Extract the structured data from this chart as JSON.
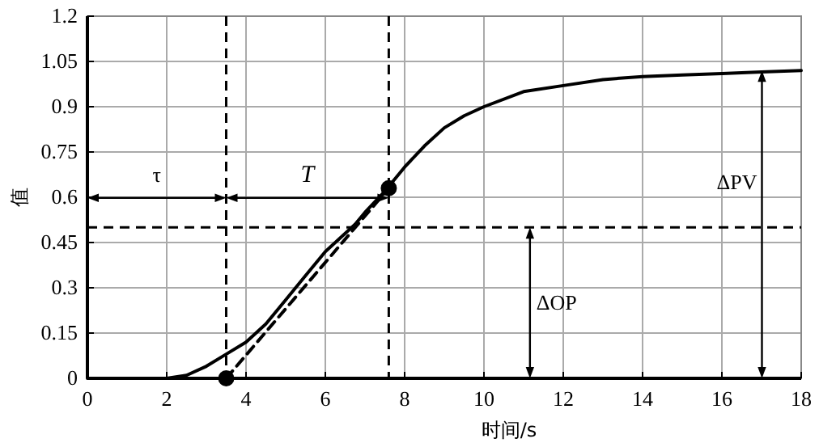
{
  "chart_data": {
    "type": "line",
    "xlabel": "时间/s",
    "ylabel": "值",
    "xlim": [
      0,
      18
    ],
    "ylim": [
      0,
      1.2
    ],
    "xticks": [
      0,
      2,
      4,
      6,
      8,
      10,
      12,
      14,
      16,
      18
    ],
    "yticks": [
      0,
      0.15,
      0.3,
      0.45,
      0.6,
      0.75,
      0.9,
      1.05,
      1.2
    ],
    "grid": true,
    "series": [
      {
        "color": "#000000",
        "line_style": "solid",
        "x": [
          0,
          2,
          2.5,
          3,
          3.5,
          4,
          4.5,
          5,
          5.5,
          6,
          6.5,
          6.75,
          7,
          7.5,
          8,
          8.5,
          9,
          9.5,
          10,
          11,
          12,
          13,
          14,
          15,
          16,
          17,
          18
        ],
        "values": [
          0,
          0,
          0.01,
          0.04,
          0.08,
          0.12,
          0.18,
          0.26,
          0.34,
          0.42,
          0.48,
          0.51,
          0.55,
          0.62,
          0.7,
          0.77,
          0.83,
          0.87,
          0.9,
          0.95,
          0.97,
          0.99,
          1.0,
          1.005,
          1.01,
          1.015,
          1.02
        ]
      },
      {
        "type": "line",
        "color": "#000000",
        "line_style": "dashed",
        "x": [
          3.5,
          7.6
        ],
        "values": [
          0,
          0.63
        ]
      },
      {
        "type": "scatter",
        "color": "#000000",
        "marker": "circle",
        "x": [
          3.5,
          7.6
        ],
        "values": [
          0,
          0.63
        ]
      }
    ],
    "ref_lines": [
      {
        "axis": "x",
        "value": 3.5,
        "line_style": "dashed",
        "color": "#000000"
      },
      {
        "axis": "x",
        "value": 7.6,
        "line_style": "dashed",
        "color": "#000000"
      },
      {
        "axis": "y",
        "value": 0.5,
        "line_style": "dashed",
        "color": "#000000"
      }
    ],
    "annotations": [
      "τ",
      "T",
      "ΔOP",
      "ΔPV"
    ]
  }
}
